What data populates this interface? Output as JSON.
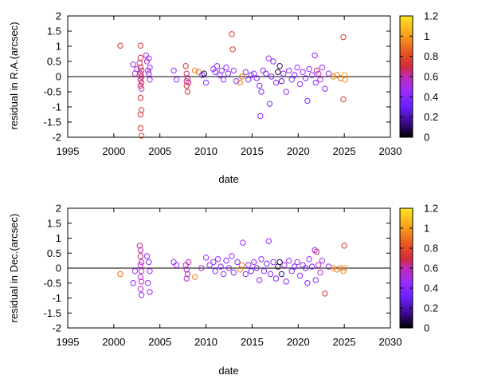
{
  "chart_data": [
    {
      "type": "scatter",
      "xlabel": "date",
      "ylabel": "residual in R.A.(arcsec)",
      "xlim": [
        1995,
        2030
      ],
      "ylim": [
        -2,
        2
      ],
      "xticks": [
        "1995",
        "2000",
        "2005",
        "2010",
        "2015",
        "2020",
        "2025",
        "2030"
      ],
      "yticks": [
        "-2",
        "-1.5",
        "-1",
        "-0.5",
        "0",
        "0.5",
        "1",
        "1.5",
        "2"
      ],
      "colorbar": {
        "range": [
          0,
          1.2
        ],
        "ticks": [
          "0",
          "0.2",
          "0.4",
          "0.6",
          "0.8",
          "1",
          "1.2"
        ]
      },
      "zero_line": true,
      "grid": false,
      "points": [
        [
          2000.7,
          1.02,
          0.75
        ],
        [
          2002.1,
          0.4,
          0.45
        ],
        [
          2002.3,
          0.1,
          0.55
        ],
        [
          2002.5,
          0.25,
          0.45
        ],
        [
          2002.9,
          1.02,
          0.75
        ],
        [
          2002.9,
          0.62,
          0.7
        ],
        [
          2002.8,
          0.45,
          0.65
        ],
        [
          2002.9,
          0.3,
          0.7
        ],
        [
          2003.0,
          0.2,
          0.6
        ],
        [
          2002.9,
          0.1,
          0.65
        ],
        [
          2003.0,
          0.0,
          0.7
        ],
        [
          2002.9,
          -0.1,
          0.6
        ],
        [
          2003.0,
          -0.2,
          0.7
        ],
        [
          2002.9,
          -0.3,
          0.65
        ],
        [
          2003.0,
          -0.4,
          0.6
        ],
        [
          2002.9,
          -0.7,
          0.7
        ],
        [
          2003.0,
          -1.1,
          0.75
        ],
        [
          2002.9,
          -1.25,
          0.7
        ],
        [
          2002.9,
          -1.7,
          0.75
        ],
        [
          2003.0,
          -1.95,
          0.75
        ],
        [
          2003.5,
          0.7,
          0.45
        ],
        [
          2003.8,
          0.6,
          0.45
        ],
        [
          2003.9,
          0.3,
          0.45
        ],
        [
          2003.7,
          0.2,
          0.5
        ],
        [
          2003.8,
          0.1,
          0.45
        ],
        [
          2003.9,
          -0.1,
          0.45
        ],
        [
          2003.6,
          0.5,
          0.6
        ],
        [
          2006.5,
          0.2,
          0.45
        ],
        [
          2006.8,
          -0.1,
          0.45
        ],
        [
          2007.8,
          0.35,
          0.7
        ],
        [
          2007.9,
          0.1,
          0.65
        ],
        [
          2008.0,
          -0.05,
          0.65
        ],
        [
          2007.9,
          -0.15,
          0.6
        ],
        [
          2008.1,
          -0.2,
          0.65
        ],
        [
          2007.9,
          -0.3,
          0.7
        ],
        [
          2008.0,
          -0.5,
          0.7
        ],
        [
          2008.8,
          0.2,
          0.95
        ],
        [
          2009.2,
          0.15,
          0.9
        ],
        [
          2009.6,
          0.05,
          0.35
        ],
        [
          2009.8,
          0.1,
          0.05
        ],
        [
          2010.0,
          -0.2,
          0.4
        ],
        [
          2010.8,
          0.25,
          0.45
        ],
        [
          2011.0,
          0.15,
          0.4
        ],
        [
          2011.2,
          0.35,
          0.45
        ],
        [
          2011.5,
          0.05,
          0.35
        ],
        [
          2011.7,
          0.2,
          0.45
        ],
        [
          2011.9,
          -0.1,
          0.4
        ],
        [
          2012.2,
          0.3,
          0.45
        ],
        [
          2012.4,
          0.1,
          0.4
        ],
        [
          2012.8,
          1.4,
          0.75
        ],
        [
          2012.9,
          0.9,
          0.75
        ],
        [
          2013.0,
          0.2,
          0.45
        ],
        [
          2013.3,
          -0.15,
          0.4
        ],
        [
          2013.7,
          -0.2,
          0.95
        ],
        [
          2013.9,
          0.0,
          0.9
        ],
        [
          2014.3,
          0.15,
          0.4
        ],
        [
          2014.6,
          -0.1,
          0.35
        ],
        [
          2014.9,
          0.05,
          0.4
        ],
        [
          2015.2,
          0.1,
          0.45
        ],
        [
          2015.5,
          -0.05,
          0.35
        ],
        [
          2015.8,
          -0.3,
          0.4
        ],
        [
          2016.0,
          -0.5,
          0.4
        ],
        [
          2015.9,
          -1.3,
          0.4
        ],
        [
          2016.2,
          0.2,
          0.45
        ],
        [
          2016.5,
          0.1,
          0.35
        ],
        [
          2016.8,
          0.6,
          0.45
        ],
        [
          2016.9,
          -0.9,
          0.4
        ],
        [
          2017.1,
          0.0,
          0.4
        ],
        [
          2017.3,
          0.5,
          0.45
        ],
        [
          2017.6,
          -0.2,
          0.4
        ],
        [
          2017.8,
          0.15,
          0.05
        ],
        [
          2018.0,
          0.35,
          0.1
        ],
        [
          2018.2,
          -0.15,
          0.2
        ],
        [
          2018.4,
          0.1,
          0.45
        ],
        [
          2018.7,
          -0.5,
          0.4
        ],
        [
          2019.0,
          0.2,
          0.45
        ],
        [
          2019.3,
          -0.1,
          0.4
        ],
        [
          2019.6,
          0.05,
          0.35
        ],
        [
          2019.9,
          0.3,
          0.45
        ],
        [
          2020.2,
          -0.25,
          0.4
        ],
        [
          2020.5,
          0.15,
          0.45
        ],
        [
          2020.8,
          -0.05,
          0.35
        ],
        [
          2021.0,
          -0.8,
          0.4
        ],
        [
          2021.2,
          0.25,
          0.45
        ],
        [
          2021.5,
          0.05,
          0.4
        ],
        [
          2021.8,
          0.7,
          0.45
        ],
        [
          2021.9,
          -0.2,
          0.4
        ],
        [
          2022.0,
          0.2,
          0.65
        ],
        [
          2022.2,
          0.1,
          0.6
        ],
        [
          2022.4,
          -0.1,
          0.55
        ],
        [
          2022.6,
          0.3,
          0.45
        ],
        [
          2022.9,
          -0.4,
          0.4
        ],
        [
          2023.3,
          0.1,
          0.45
        ],
        [
          2023.8,
          0.0,
          0.95
        ],
        [
          2024.2,
          0.05,
          0.95
        ],
        [
          2024.6,
          -0.05,
          0.9
        ],
        [
          2024.9,
          1.3,
          0.75
        ],
        [
          2025.0,
          0.05,
          1.0
        ],
        [
          2025.1,
          -0.1,
          0.95
        ],
        [
          2024.9,
          -0.75,
          0.75
        ]
      ]
    },
    {
      "type": "scatter",
      "xlabel": "date",
      "ylabel": "residual in Dec.(arcsec)",
      "xlim": [
        1995,
        2030
      ],
      "ylim": [
        -2,
        2
      ],
      "xticks": [
        "1995",
        "2000",
        "2005",
        "2010",
        "2015",
        "2020",
        "2025",
        "2030"
      ],
      "yticks": [
        "-2",
        "-1.5",
        "-1",
        "-0.5",
        "0",
        "0.5",
        "1",
        "1.5",
        "2"
      ],
      "colorbar": {
        "range": [
          0,
          1.2
        ],
        "ticks": [
          "0",
          "0.2",
          "0.4",
          "0.6",
          "0.8",
          "1",
          "1.2"
        ]
      },
      "zero_line": true,
      "grid": false,
      "points": [
        [
          2000.7,
          -0.2,
          0.9
        ],
        [
          2002.1,
          -0.5,
          0.4
        ],
        [
          2002.3,
          -0.1,
          0.45
        ],
        [
          2002.8,
          0.75,
          0.65
        ],
        [
          2002.9,
          0.6,
          0.6
        ],
        [
          2002.9,
          0.4,
          0.65
        ],
        [
          2003.0,
          0.2,
          0.6
        ],
        [
          2002.9,
          0.1,
          0.55
        ],
        [
          2003.0,
          -0.1,
          0.6
        ],
        [
          2002.9,
          -0.3,
          0.55
        ],
        [
          2003.0,
          -0.45,
          0.6
        ],
        [
          2002.9,
          -0.7,
          0.55
        ],
        [
          2003.0,
          -0.9,
          0.45
        ],
        [
          2003.6,
          0.4,
          0.45
        ],
        [
          2003.8,
          0.2,
          0.45
        ],
        [
          2003.9,
          -0.1,
          0.45
        ],
        [
          2003.7,
          -0.5,
          0.45
        ],
        [
          2003.9,
          -0.8,
          0.45
        ],
        [
          2006.5,
          0.2,
          0.45
        ],
        [
          2006.8,
          0.1,
          0.45
        ],
        [
          2007.8,
          0.1,
          0.6
        ],
        [
          2007.9,
          -0.05,
          0.55
        ],
        [
          2008.0,
          -0.2,
          0.6
        ],
        [
          2007.9,
          -0.35,
          0.55
        ],
        [
          2008.1,
          0.2,
          0.6
        ],
        [
          2008.8,
          -0.3,
          0.95
        ],
        [
          2009.5,
          0.0,
          0.5
        ],
        [
          2010.0,
          0.35,
          0.45
        ],
        [
          2010.4,
          0.1,
          0.4
        ],
        [
          2010.8,
          0.2,
          0.45
        ],
        [
          2011.0,
          -0.1,
          0.4
        ],
        [
          2011.3,
          0.3,
          0.45
        ],
        [
          2011.6,
          0.05,
          0.4
        ],
        [
          2011.9,
          -0.2,
          0.45
        ],
        [
          2012.2,
          0.25,
          0.4
        ],
        [
          2012.5,
          0.0,
          0.4
        ],
        [
          2012.8,
          0.4,
          0.45
        ],
        [
          2013.0,
          -0.15,
          0.4
        ],
        [
          2013.4,
          0.2,
          0.4
        ],
        [
          2013.7,
          -0.05,
          0.95
        ],
        [
          2013.9,
          0.1,
          0.9
        ],
        [
          2014.0,
          0.85,
          0.45
        ],
        [
          2014.3,
          -0.2,
          0.4
        ],
        [
          2014.6,
          0.1,
          0.4
        ],
        [
          2014.9,
          -0.1,
          0.35
        ],
        [
          2015.2,
          0.2,
          0.45
        ],
        [
          2015.5,
          0.0,
          0.35
        ],
        [
          2015.8,
          -0.4,
          0.4
        ],
        [
          2016.0,
          0.3,
          0.45
        ],
        [
          2016.3,
          -0.1,
          0.4
        ],
        [
          2016.6,
          0.15,
          0.35
        ],
        [
          2016.8,
          0.9,
          0.45
        ],
        [
          2017.0,
          -0.2,
          0.4
        ],
        [
          2017.3,
          0.2,
          0.45
        ],
        [
          2017.6,
          -0.35,
          0.4
        ],
        [
          2017.8,
          0.05,
          0.05
        ],
        [
          2018.0,
          0.2,
          0.1
        ],
        [
          2018.2,
          -0.2,
          0.15
        ],
        [
          2018.5,
          0.1,
          0.45
        ],
        [
          2018.7,
          -0.45,
          0.4
        ],
        [
          2019.0,
          0.25,
          0.45
        ],
        [
          2019.3,
          -0.1,
          0.4
        ],
        [
          2019.6,
          0.05,
          0.35
        ],
        [
          2019.9,
          0.2,
          0.45
        ],
        [
          2020.2,
          -0.25,
          0.4
        ],
        [
          2020.5,
          0.1,
          0.45
        ],
        [
          2020.8,
          0.0,
          0.35
        ],
        [
          2021.0,
          -0.5,
          0.4
        ],
        [
          2021.2,
          0.3,
          0.45
        ],
        [
          2021.5,
          0.05,
          0.4
        ],
        [
          2021.8,
          0.6,
          0.45
        ],
        [
          2021.9,
          -0.4,
          0.4
        ],
        [
          2022.0,
          0.55,
          0.65
        ],
        [
          2022.2,
          0.1,
          0.6
        ],
        [
          2022.4,
          -0.15,
          0.55
        ],
        [
          2022.6,
          0.25,
          0.45
        ],
        [
          2022.9,
          -0.85,
          0.75
        ],
        [
          2023.3,
          0.05,
          0.45
        ],
        [
          2023.8,
          0.0,
          0.95
        ],
        [
          2024.2,
          -0.05,
          0.95
        ],
        [
          2024.6,
          0.0,
          0.9
        ],
        [
          2025.0,
          0.75,
          0.75
        ],
        [
          2025.1,
          0.0,
          1.0
        ],
        [
          2024.9,
          -0.1,
          0.95
        ]
      ]
    }
  ]
}
